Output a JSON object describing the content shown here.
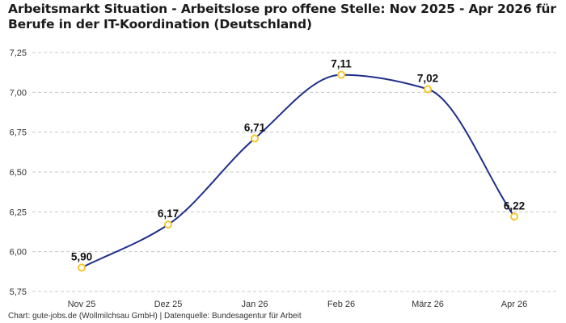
{
  "header": {
    "title": "Arbeitsmarkt Situation - Arbeitslose pro offene Stelle: Nov 2025 - Apr 2026 für Berufe in der IT-Koordination (Deutschland)"
  },
  "footer": {
    "source": "Chart: gute-jobs.de (Wollmilchsau GmbH) | Datenquelle: Bundesagentur für Arbeit"
  },
  "colors": {
    "line": "#1f2f8a",
    "marker_stroke": "#f5c62b",
    "marker_fill": "#ffffff",
    "grid": "#c8c8c8"
  },
  "chart_data": {
    "type": "line",
    "categories": [
      "Nov 25",
      "Dez 25",
      "Jan 26",
      "Feb 26",
      "März 26",
      "Apr 26"
    ],
    "series": [
      {
        "values": [
          5.9,
          6.17,
          6.71,
          7.11,
          7.02,
          6.22
        ],
        "labels": [
          "5,90",
          "6,17",
          "6,71",
          "7,11",
          "7,02",
          "6,22"
        ]
      }
    ],
    "yticks": [
      5.75,
      6.0,
      6.25,
      6.5,
      6.75,
      7.0,
      7.25
    ],
    "ytick_labels": [
      "5,75",
      "6,00",
      "6,25",
      "6,50",
      "6,75",
      "7,00",
      "7,25"
    ],
    "ylim": [
      5.75,
      7.25
    ],
    "grid": "horizontal dashed",
    "curve": "smooth"
  }
}
